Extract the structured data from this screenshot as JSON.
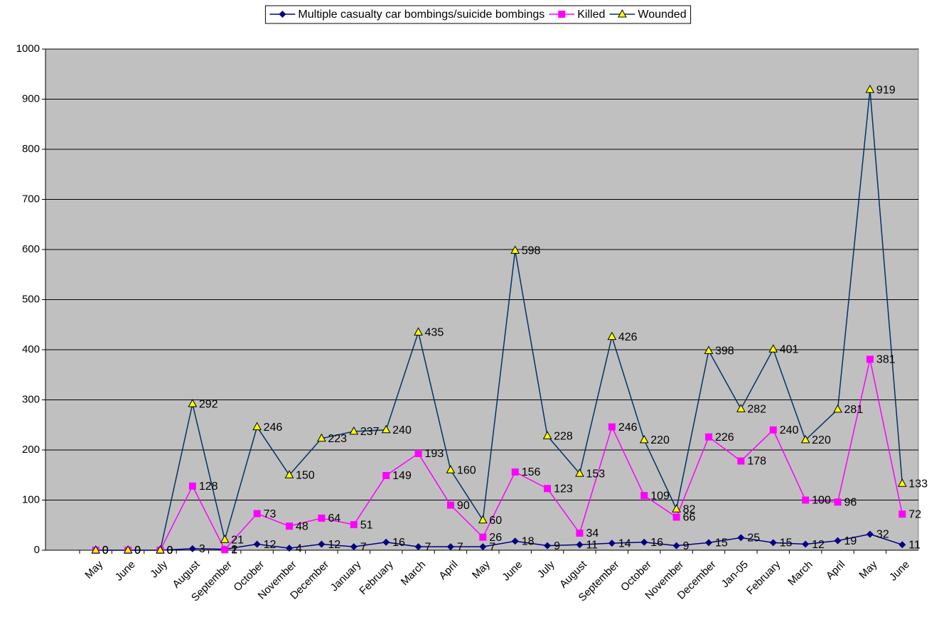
{
  "chart_data": {
    "type": "line",
    "categories": [
      "May",
      "June",
      "July",
      "August",
      "September",
      "October",
      "November",
      "December",
      "January",
      "February",
      "March",
      "April",
      "May",
      "June",
      "July",
      "August",
      "September",
      "October",
      "November",
      "December",
      "Jan-05",
      "February",
      "March",
      "April",
      "May",
      "June"
    ],
    "series": [
      {
        "name": "Multiple casualty car bombings/suicide bombings",
        "color": "#000080",
        "marker": "diamond",
        "values": [
          0,
          0,
          0,
          3,
          2,
          12,
          4,
          12,
          7,
          16,
          7,
          7,
          7,
          18,
          9,
          11,
          14,
          16,
          9,
          15,
          25,
          15,
          12,
          19,
          32,
          11
        ]
      },
      {
        "name": "Killed",
        "color": "#ff00ff",
        "marker": "square",
        "values": [
          0,
          0,
          0,
          128,
          1,
          73,
          48,
          64,
          51,
          149,
          193,
          90,
          26,
          156,
          123,
          34,
          246,
          109,
          66,
          226,
          178,
          240,
          100,
          96,
          381,
          72
        ]
      },
      {
        "name": "Wounded",
        "color": "#003366",
        "marker": "triangle",
        "marker_fill": "#ffff00",
        "values": [
          0,
          0,
          0,
          292,
          21,
          246,
          150,
          223,
          237,
          240,
          435,
          160,
          60,
          598,
          228,
          153,
          426,
          220,
          82,
          398,
          282,
          401,
          220,
          281,
          919,
          133
        ]
      }
    ],
    "ylim": [
      0,
      1000
    ],
    "yticks": [
      0,
      100,
      200,
      300,
      400,
      500,
      600,
      700,
      800,
      900,
      1000
    ],
    "grid": true,
    "legend": "top",
    "plot_background": "#c0c0c0"
  }
}
